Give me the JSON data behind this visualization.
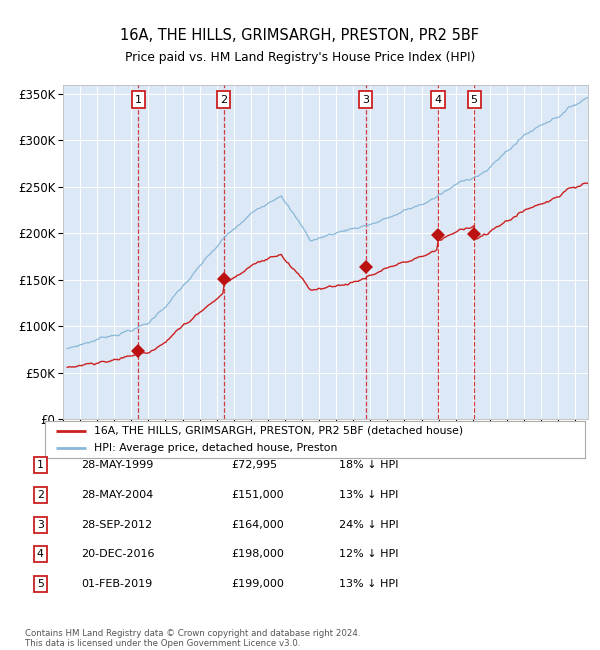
{
  "title": "16A, THE HILLS, GRIMSARGH, PRESTON, PR2 5BF",
  "subtitle": "Price paid vs. HM Land Registry's House Price Index (HPI)",
  "ylim": [
    0,
    360000
  ],
  "yticks": [
    0,
    50000,
    100000,
    150000,
    200000,
    250000,
    300000,
    350000
  ],
  "ytick_labels": [
    "£0",
    "£50K",
    "£100K",
    "£150K",
    "£200K",
    "£250K",
    "£300K",
    "£350K"
  ],
  "background_color": "#ffffff",
  "plot_bg_color": "#dce8f5",
  "grid_color": "#ffffff",
  "hpi_line_color": "#89b8d8",
  "price_line_color": "#cc2020",
  "purchase_marker_color": "#bb1111",
  "vline_color": "#cc2020",
  "purchases": [
    {
      "label": "1",
      "date_num": 1999.41,
      "price": 72995
    },
    {
      "label": "2",
      "date_num": 2004.41,
      "price": 151000
    },
    {
      "label": "3",
      "date_num": 2012.74,
      "price": 164000
    },
    {
      "label": "4",
      "date_num": 2016.97,
      "price": 198000
    },
    {
      "label": "5",
      "date_num": 2019.08,
      "price": 199000
    }
  ],
  "legend_line1": "16A, THE HILLS, GRIMSARGH, PRESTON, PR2 5BF (detached house)",
  "legend_line2": "HPI: Average price, detached house, Preston",
  "table_entries": [
    {
      "num": "1",
      "date": "28-MAY-1999",
      "price": "£72,995",
      "hpi": "18% ↓ HPI"
    },
    {
      "num": "2",
      "date": "28-MAY-2004",
      "price": "£151,000",
      "hpi": "13% ↓ HPI"
    },
    {
      "num": "3",
      "date": "28-SEP-2012",
      "price": "£164,000",
      "hpi": "24% ↓ HPI"
    },
    {
      "num": "4",
      "date": "20-DEC-2016",
      "price": "£198,000",
      "hpi": "12% ↓ HPI"
    },
    {
      "num": "5",
      "date": "01-FEB-2019",
      "price": "£199,000",
      "hpi": "13% ↓ HPI"
    }
  ],
  "footnote1": "Contains HM Land Registry data © Crown copyright and database right 2024.",
  "footnote2": "This data is licensed under the Open Government Licence v3.0.",
  "xmin": 1995.25,
  "xmax": 2025.75
}
